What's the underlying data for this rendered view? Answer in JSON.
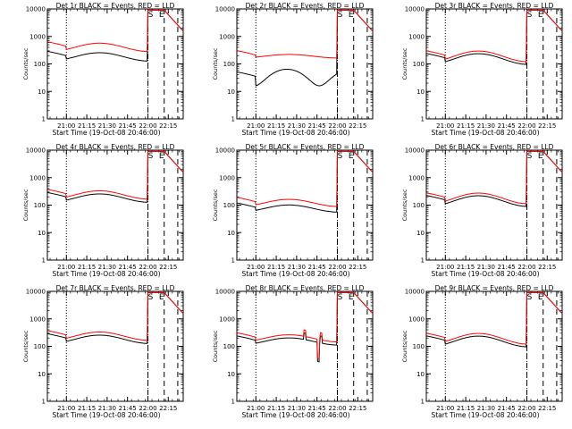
{
  "chart_data": [
    {
      "type": "line",
      "title": "Det 1r BLACK = Events, RED = LLD",
      "xlabel": "Start Time (19-Oct-08 20:46:00)",
      "ylabel": "Counts/sec",
      "yscale": "log",
      "ylim": [
        1,
        10000
      ],
      "y_ticks": [
        "1",
        "10",
        "100",
        "1000",
        "10000"
      ],
      "xlim_minutes_after_start": [
        0,
        100
      ],
      "x_ticks": [
        "21:00",
        "21:15",
        "21:30",
        "21:45",
        "22:00",
        "22:15"
      ],
      "x_tick_positions_min": [
        14,
        29,
        44,
        59,
        74,
        89
      ],
      "dotted_lines_min": [
        14,
        74
      ],
      "dashed_lines_min": [
        74,
        86,
        96
      ],
      "annotations": [
        "S",
        "E"
      ],
      "annotation_positions_min": [
        76,
        84
      ],
      "series": [
        {
          "color": "#000000",
          "shape": "normal",
          "base": 180,
          "wave_amp": 0.35,
          "ratio": 1.0
        },
        {
          "color": "#ff0000",
          "shape": "normal",
          "base": 250,
          "wave_amp": 0.35,
          "ratio": 1.6
        }
      ]
    },
    {
      "type": "line",
      "title": "Det 2r BLACK = Events, RED = LLD",
      "xlabel": "Start Time (19-Oct-08 20:46:00)",
      "ylabel": "Counts/sec",
      "yscale": "log",
      "ylim": [
        1,
        10000
      ],
      "y_ticks": [
        "1",
        "10",
        "100",
        "1000",
        "10000"
      ],
      "xlim_minutes_after_start": [
        0,
        100
      ],
      "x_ticks": [
        "21:00",
        "21:15",
        "21:30",
        "21:45",
        "22:00",
        "22:15"
      ],
      "x_tick_positions_min": [
        14,
        29,
        44,
        59,
        74,
        89
      ],
      "dotted_lines_min": [
        14,
        74
      ],
      "dashed_lines_min": [
        74,
        86,
        96
      ],
      "annotations": [
        "S",
        "E"
      ],
      "annotation_positions_min": [
        76,
        84
      ],
      "series": [
        {
          "color": "#000000",
          "shape": "low",
          "base": 40,
          "wave_amp": 0.5,
          "ratio": 1.0
        },
        {
          "color": "#ff0000",
          "shape": "flat",
          "base": 190,
          "wave_amp": 0.15,
          "ratio": 1.0
        }
      ]
    },
    {
      "type": "line",
      "title": "Det 3r BLACK = Events, RED = LLD",
      "xlabel": "Start Time (19-Oct-08 20:46:00)",
      "ylabel": "Counts/sec",
      "yscale": "log",
      "ylim": [
        1,
        10000
      ],
      "y_ticks": [
        "1",
        "10",
        "100",
        "1000",
        "10000"
      ],
      "xlim_minutes_after_start": [
        0,
        100
      ],
      "x_ticks": [
        "21:00",
        "21:15",
        "21:30",
        "21:45",
        "22:00",
        "22:15"
      ],
      "x_tick_positions_min": [
        14,
        29,
        44,
        59,
        74,
        89
      ],
      "dotted_lines_min": [
        14,
        74
      ],
      "dashed_lines_min": [
        74,
        86,
        96
      ],
      "annotations": [
        "S",
        "E"
      ],
      "annotation_positions_min": [
        76,
        84
      ],
      "series": [
        {
          "color": "#000000",
          "shape": "normal",
          "base": 150,
          "wave_amp": 0.45,
          "ratio": 1.0
        },
        {
          "color": "#ff0000",
          "shape": "normal",
          "base": 150,
          "wave_amp": 0.45,
          "ratio": 1.25
        }
      ]
    },
    {
      "type": "line",
      "title": "Det 4r BLACK = Events, RED = LLD",
      "xlabel": "Start Time (19-Oct-08 20:46:00)",
      "ylabel": "Counts/sec",
      "yscale": "log",
      "ylim": [
        1,
        10000
      ],
      "y_ticks": [
        "1",
        "10",
        "100",
        "1000",
        "10000"
      ],
      "xlim_minutes_after_start": [
        0,
        100
      ],
      "x_ticks": [
        "21:00",
        "21:15",
        "21:30",
        "21:45",
        "22:00",
        "22:15"
      ],
      "x_tick_positions_min": [
        14,
        29,
        44,
        59,
        74,
        89
      ],
      "dotted_lines_min": [
        14,
        74
      ],
      "dashed_lines_min": [
        74,
        86,
        96
      ],
      "annotations": [
        "S",
        "E"
      ],
      "annotation_positions_min": [
        76,
        84
      ],
      "series": [
        {
          "color": "#000000",
          "shape": "normal",
          "base": 180,
          "wave_amp": 0.35,
          "ratio": 1.0
        },
        {
          "color": "#ff0000",
          "shape": "normal",
          "base": 180,
          "wave_amp": 0.35,
          "ratio": 1.3
        }
      ]
    },
    {
      "type": "line",
      "title": "Det 5r BLACK = Events, RED = LLD",
      "xlabel": "Start Time (19-Oct-08 20:46:00)",
      "ylabel": "Counts/sec",
      "yscale": "log",
      "ylim": [
        1,
        10000
      ],
      "y_ticks": [
        "1",
        "10",
        "100",
        "1000",
        "10000"
      ],
      "xlim_minutes_after_start": [
        0,
        100
      ],
      "x_ticks": [
        "21:00",
        "21:15",
        "21:30",
        "21:45",
        "22:00",
        "22:15"
      ],
      "x_tick_positions_min": [
        14,
        29,
        44,
        59,
        74,
        89
      ],
      "dotted_lines_min": [
        14,
        74
      ],
      "dashed_lines_min": [
        74,
        86,
        96
      ],
      "annotations": [
        "S",
        "E"
      ],
      "annotation_positions_min": [
        76,
        84
      ],
      "series": [
        {
          "color": "#000000",
          "shape": "normal",
          "base": 75,
          "wave_amp": 0.3,
          "ratio": 1.0
        },
        {
          "color": "#ff0000",
          "shape": "normal",
          "base": 75,
          "wave_amp": 0.3,
          "ratio": 1.6
        }
      ]
    },
    {
      "type": "line",
      "title": "Det 6r BLACK = Events, RED = LLD",
      "xlabel": "Start Time (19-Oct-08 20:46:00)",
      "ylabel": "Counts/sec",
      "yscale": "log",
      "ylim": [
        1,
        10000
      ],
      "y_ticks": [
        "1",
        "10",
        "100",
        "1000",
        "10000"
      ],
      "xlim_minutes_after_start": [
        0,
        100
      ],
      "x_ticks": [
        "21:00",
        "21:15",
        "21:30",
        "21:45",
        "22:00",
        "22:15"
      ],
      "x_tick_positions_min": [
        14,
        29,
        44,
        59,
        74,
        89
      ],
      "dotted_lines_min": [
        14,
        74
      ],
      "dashed_lines_min": [
        74,
        86,
        96
      ],
      "annotations": [
        "S",
        "E"
      ],
      "annotation_positions_min": [
        76,
        84
      ],
      "series": [
        {
          "color": "#000000",
          "shape": "normal",
          "base": 140,
          "wave_amp": 0.45,
          "ratio": 1.0
        },
        {
          "color": "#ff0000",
          "shape": "normal",
          "base": 140,
          "wave_amp": 0.45,
          "ratio": 1.25
        }
      ]
    },
    {
      "type": "line",
      "title": "Det 7r BLACK = Events, RED = LLD",
      "xlabel": "Start Time (19-Oct-08 20:46:00)",
      "ylabel": "Counts/sec",
      "yscale": "log",
      "ylim": [
        1,
        10000
      ],
      "y_ticks": [
        "1",
        "10",
        "100",
        "1000",
        "10000"
      ],
      "xlim_minutes_after_start": [
        0,
        100
      ],
      "x_ticks": [
        "21:00",
        "21:15",
        "21:30",
        "21:45",
        "22:00",
        "22:15"
      ],
      "x_tick_positions_min": [
        14,
        29,
        44,
        59,
        74,
        89
      ],
      "dotted_lines_min": [
        14,
        74
      ],
      "dashed_lines_min": [
        74,
        86,
        96
      ],
      "annotations": [
        "S",
        "E"
      ],
      "annotation_positions_min": [
        76,
        84
      ],
      "series": [
        {
          "color": "#000000",
          "shape": "normal",
          "base": 180,
          "wave_amp": 0.35,
          "ratio": 1.0
        },
        {
          "color": "#ff0000",
          "shape": "normal",
          "base": 180,
          "wave_amp": 0.35,
          "ratio": 1.3
        }
      ]
    },
    {
      "type": "line",
      "title": "Det 8r BLACK = Events, RED = LLD",
      "xlabel": "Start Time (19-Oct-08 20:46:00)",
      "ylabel": "Counts/sec",
      "yscale": "log",
      "ylim": [
        1,
        10000
      ],
      "y_ticks": [
        "1",
        "10",
        "100",
        "1000",
        "10000"
      ],
      "xlim_minutes_after_start": [
        0,
        100
      ],
      "x_ticks": [
        "21:00",
        "21:15",
        "21:30",
        "21:45",
        "22:00",
        "22:15"
      ],
      "x_tick_positions_min": [
        14,
        29,
        44,
        59,
        74,
        89
      ],
      "dotted_lines_min": [
        14,
        74
      ],
      "dashed_lines_min": [
        74,
        86,
        96
      ],
      "annotations": [
        "S",
        "E"
      ],
      "annotation_positions_min": [
        76,
        84
      ],
      "series": [
        {
          "color": "#000000",
          "shape": "spiky",
          "base": 150,
          "wave_amp": 0.3,
          "ratio": 1.0
        },
        {
          "color": "#ff0000",
          "shape": "spiky",
          "base": 150,
          "wave_amp": 0.3,
          "ratio": 1.3
        }
      ]
    },
    {
      "type": "line",
      "title": "Det 9r BLACK = Events, RED = LLD",
      "xlabel": "Start Time (19-Oct-08 20:46:00)",
      "ylabel": "Counts/sec",
      "yscale": "log",
      "ylim": [
        1,
        10000
      ],
      "y_ticks": [
        "1",
        "10",
        "100",
        "1000",
        "10000"
      ],
      "xlim_minutes_after_start": [
        0,
        100
      ],
      "x_ticks": [
        "21:00",
        "21:15",
        "21:30",
        "21:45",
        "22:00",
        "22:15"
      ],
      "x_tick_positions_min": [
        14,
        29,
        44,
        59,
        74,
        89
      ],
      "dotted_lines_min": [
        14,
        74
      ],
      "dashed_lines_min": [
        74,
        86,
        96
      ],
      "annotations": [
        "S",
        "E"
      ],
      "annotation_positions_min": [
        76,
        84
      ],
      "series": [
        {
          "color": "#000000",
          "shape": "normal",
          "base": 150,
          "wave_amp": 0.45,
          "ratio": 1.0
        },
        {
          "color": "#ff0000",
          "shape": "normal",
          "base": 150,
          "wave_amp": 0.45,
          "ratio": 1.25
        }
      ]
    }
  ]
}
